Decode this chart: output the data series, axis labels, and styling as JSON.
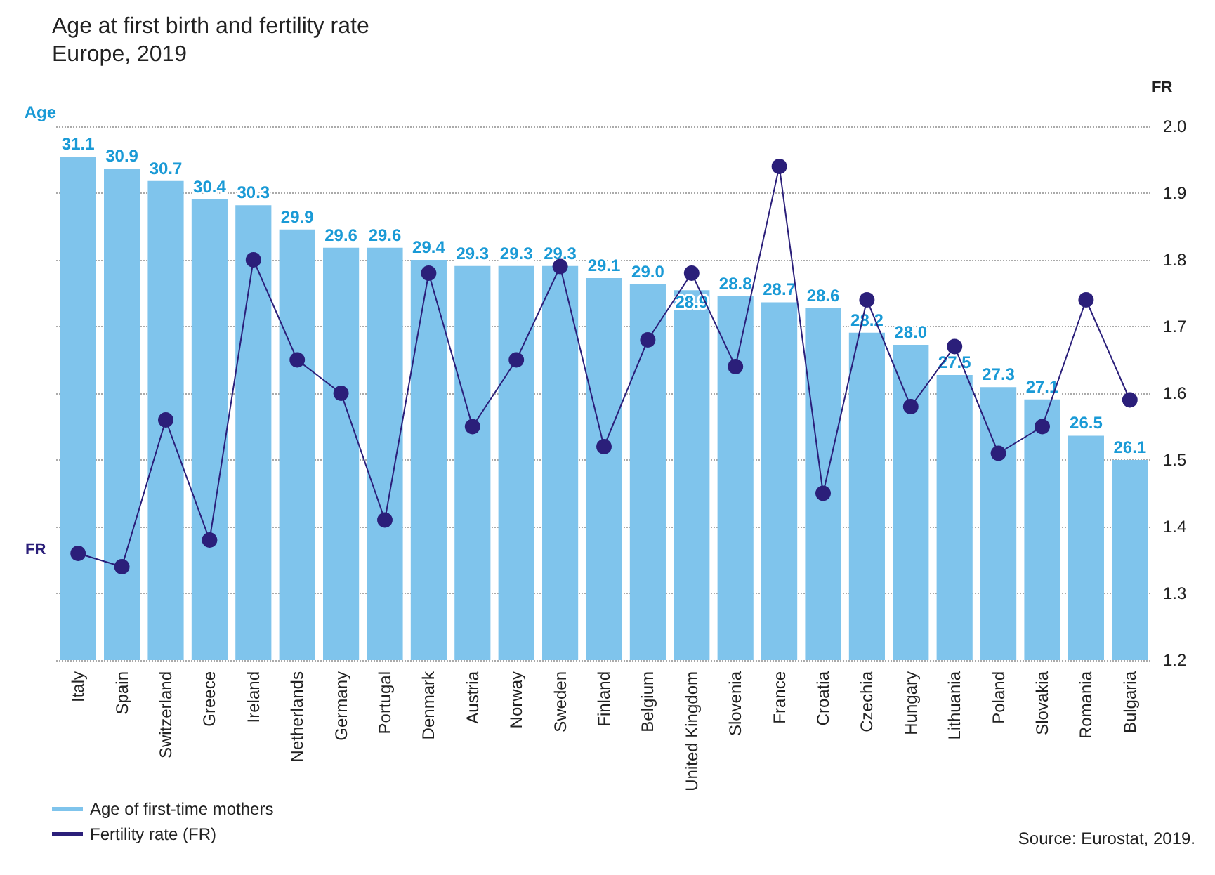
{
  "chart_data": {
    "type": "bar",
    "title": "Age at first birth and fertility rate",
    "subtitle": "Europe, 2019",
    "ylabel": "Age",
    "y2label": "FR",
    "categories": [
      "Italy",
      "Spain",
      "Switzerland",
      "Greece",
      "Ireland",
      "Netherlands",
      "Germany",
      "Portugal",
      "Denmark",
      "Austria",
      "Norway",
      "Sweden",
      "Finland",
      "Belgium",
      "United Kingdom",
      "Slovenia",
      "France",
      "Croatia",
      "Czechia",
      "Hungary",
      "Lithuania",
      "Poland",
      "Slovakia",
      "Romania",
      "Bulgaria"
    ],
    "series": [
      {
        "name": "Age of first-time mothers",
        "color": "#7fc4ec",
        "values": [
          31.1,
          30.9,
          30.7,
          30.4,
          30.3,
          29.9,
          29.6,
          29.6,
          29.4,
          29.3,
          29.3,
          29.3,
          29.1,
          29.0,
          28.9,
          28.8,
          28.7,
          28.6,
          28.2,
          28.0,
          27.5,
          27.3,
          27.1,
          26.5,
          26.1
        ],
        "value_labels": [
          "31.1",
          "30.9",
          "30.7",
          "30.4",
          "30.3",
          "29.9",
          "29.6",
          "29.6",
          "29.4",
          "29.3",
          "29.3",
          "29.3",
          "29.1",
          "29.0",
          "28.9",
          "28.8",
          "28.7",
          "28.6",
          "28.2",
          "28.0",
          "27.5",
          "27.3",
          "27.1",
          "26.5",
          "26.1"
        ]
      },
      {
        "name": "Fertility rate (FR)",
        "type": "line",
        "axis": "y2",
        "color": "#2b1f7a",
        "values": [
          1.36,
          1.34,
          1.56,
          1.38,
          1.8,
          1.65,
          1.6,
          1.41,
          1.78,
          1.55,
          1.65,
          1.79,
          1.52,
          1.68,
          1.78,
          1.64,
          1.94,
          1.45,
          1.74,
          1.58,
          1.67,
          1.51,
          1.55,
          1.74,
          1.59
        ]
      }
    ],
    "ylim": [
      22.8,
      31.6
    ],
    "y2lim": [
      1.2,
      2.0
    ],
    "y2ticks": [
      {
        "value": 1.2,
        "label": "1.2"
      },
      {
        "value": 1.3,
        "label": "1.3"
      },
      {
        "value": 1.4,
        "label": "1.4"
      },
      {
        "value": 1.5,
        "label": "1.5"
      },
      {
        "value": 1.6,
        "label": "1.6"
      },
      {
        "value": 1.7,
        "label": "1.7"
      },
      {
        "value": 1.8,
        "label": "1.8"
      },
      {
        "value": 1.9,
        "label": "1.9"
      },
      {
        "value": 2,
        "label": "2.0"
      }
    ],
    "grid": "y",
    "legend": "bottom left",
    "marker": "circle",
    "line_style": "solid",
    "annotations": [
      "FR",
      "Source: Eurostat, 2019."
    ]
  }
}
